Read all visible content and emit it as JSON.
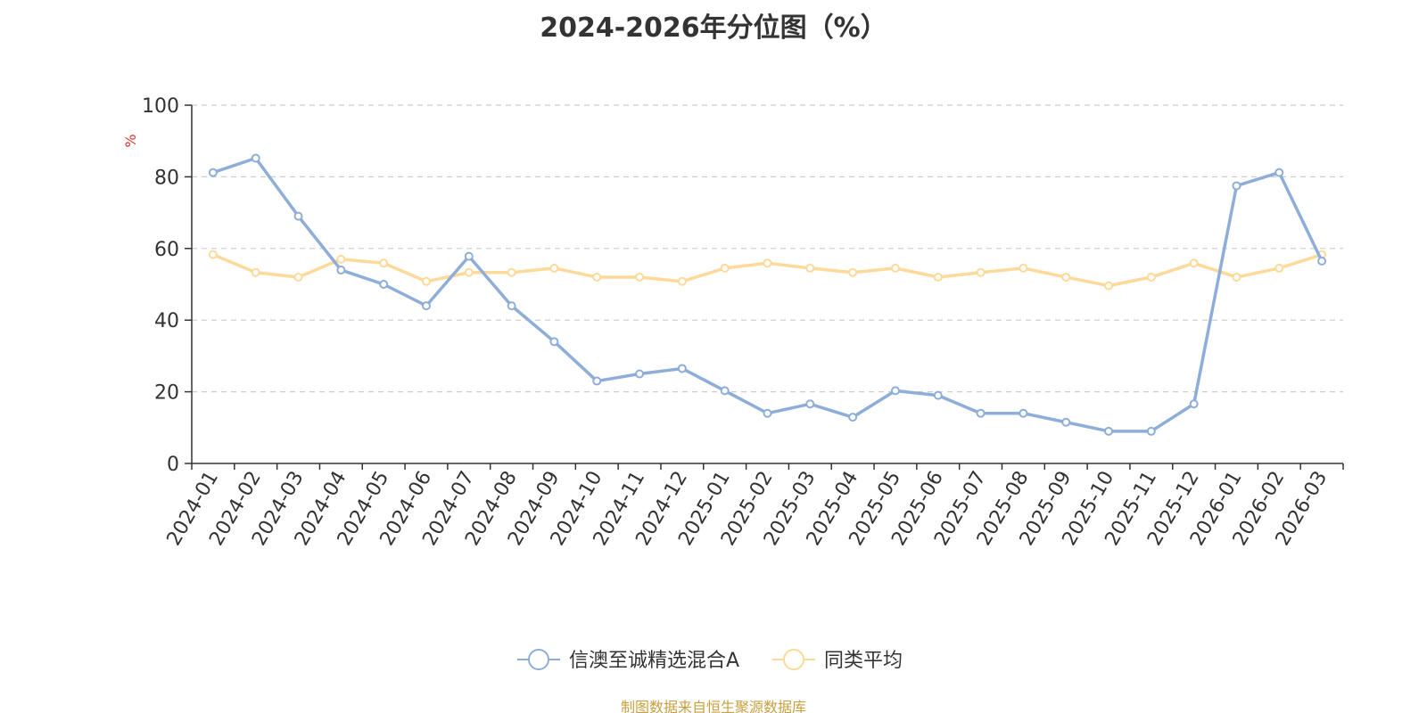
{
  "chart_data": {
    "type": "line",
    "title": "2024-2026年分位图（%）",
    "xlabel": "",
    "ylabel": "%",
    "ylim": [
      0,
      100
    ],
    "yticks": [
      0,
      20,
      40,
      60,
      80,
      100
    ],
    "grid": true,
    "legend": "bottom-center",
    "categories": [
      "2024-01",
      "2024-02",
      "2024-03",
      "2024-04",
      "2024-05",
      "2024-06",
      "2024-07",
      "2024-08",
      "2024-09",
      "2024-10",
      "2024-11",
      "2024-12",
      "2025-01",
      "2025-02",
      "2025-03",
      "2025-04",
      "2025-05",
      "2025-06",
      "2025-07",
      "2025-08",
      "2025-09",
      "2025-10",
      "2025-11",
      "2025-12",
      "2026-01",
      "2026-02",
      "2026-03"
    ],
    "series": [
      {
        "name": "信澳至诚精选混合A",
        "color": "#8eadd8",
        "values": [
          81.2,
          85.2,
          69,
          54,
          50,
          44,
          57.8,
          44,
          34,
          23,
          25,
          26.5,
          20.3,
          14,
          16.6,
          12.9,
          20.3,
          19,
          14,
          14,
          11.5,
          9,
          9,
          16.6,
          77.5,
          81.2,
          56.5
        ]
      },
      {
        "name": "同类平均",
        "color": "#fdd99a",
        "values": [
          58.3,
          53.3,
          52,
          57,
          55.9,
          50.8,
          53.3,
          53.3,
          54.5,
          52,
          52,
          50.8,
          54.5,
          55.9,
          54.5,
          53.3,
          54.5,
          52,
          53.3,
          54.5,
          52,
          49.6,
          52,
          55.9,
          52,
          54.5,
          58.3
        ]
      }
    ]
  },
  "source_note": "制图数据来自恒生聚源数据库"
}
